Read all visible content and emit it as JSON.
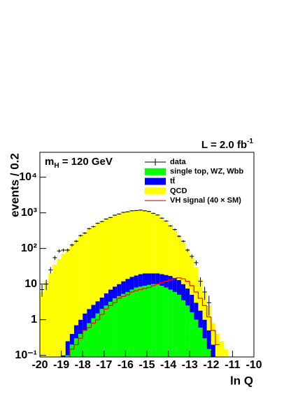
{
  "chart_data": {
    "type": "histogram",
    "lumi": {
      "text": "L = 2.0 fb",
      "sup": "-1"
    },
    "mass_label": {
      "base": "m",
      "sub": "H",
      "rest": " = 120 GeV"
    },
    "y_label": "events / 0.2",
    "x_label": "ln Q",
    "log_y": true,
    "legend": "top-right",
    "xlim": [
      -20,
      -10
    ],
    "ylim": [
      0.09,
      50000
    ],
    "xticks": [
      -20,
      -19,
      -18,
      -17,
      -16,
      -15,
      -14,
      -13,
      -12,
      -11,
      -10
    ],
    "yticks": [
      {
        "value": 0.1,
        "label": "10⁻¹"
      },
      1,
      10,
      {
        "value": 100,
        "label": "10²"
      },
      {
        "value": 1000,
        "label": "10³"
      },
      {
        "value": 10000,
        "label": "10⁴"
      }
    ],
    "bins": [
      -20,
      -19.8,
      -19.6,
      -19.4,
      -19.2,
      -19,
      -18.8,
      -18.6,
      -18.4,
      -18.2,
      -18,
      -17.8,
      -17.6,
      -17.4,
      -17.2,
      -17,
      -16.8,
      -16.6,
      -16.4,
      -16.2,
      -16,
      -15.8,
      -15.6,
      -15.4,
      -15.2,
      -15,
      -14.8,
      -14.6,
      -14.4,
      -14.2,
      -14,
      -13.8,
      -13.6,
      -13.4,
      -13.2,
      -13,
      -12.8,
      -12.6,
      -12.4,
      -12.2,
      -12,
      -11.8,
      -11.6,
      -11.4,
      -11.2,
      -11,
      -10.8,
      -10.6,
      -10.4,
      -10.2,
      -10
    ],
    "series": [
      {
        "name": "single top, WZ, Wbb",
        "color": "#00ff00",
        "values": [
          0,
          0,
          0,
          0,
          0,
          0,
          0.1,
          0.2,
          0.3,
          0.4,
          0.5,
          0.8,
          1.1,
          1.5,
          2,
          2.5,
          3.2,
          4,
          4.6,
          5.3,
          6,
          7,
          8,
          8.5,
          9,
          9.5,
          10,
          9.8,
          9,
          8,
          7,
          6,
          5,
          3.5,
          2.5,
          1.6,
          1,
          0.6,
          0.3,
          0.15,
          0,
          0,
          0,
          0,
          0,
          0,
          0,
          0,
          0,
          0
        ]
      },
      {
        "name": "tt̄",
        "color": "#0000ff",
        "values": [
          0,
          0,
          0,
          0,
          0,
          0.1,
          0.15,
          0.2,
          0.4,
          0.6,
          1,
          1.2,
          1.5,
          1.8,
          2.2,
          3,
          3.8,
          4.5,
          5.4,
          6.7,
          8,
          9,
          9.5,
          10.5,
          11,
          10.5,
          10,
          10.2,
          10,
          10,
          10,
          9,
          8,
          6.5,
          5,
          3.4,
          2,
          1.2,
          0.7,
          0.35,
          0.2,
          0,
          0,
          0,
          0,
          0,
          0,
          0,
          0,
          0
        ]
      },
      {
        "name": "QCD",
        "color": "#ffff00",
        "values": [
          6,
          12,
          20,
          35,
          50,
          70,
          95,
          130,
          169,
          219,
          278,
          348,
          417,
          497,
          576,
          655,
          743,
          841,
          930,
          1008,
          1066,
          1114,
          1152,
          1161,
          1130,
          1060,
          960,
          840,
          701,
          562,
          423,
          315,
          217,
          140,
          88,
          50,
          27,
          12,
          5,
          2,
          0.6,
          0.4,
          0.25,
          0.15,
          0,
          0,
          0,
          0,
          0,
          0
        ]
      }
    ],
    "signal": {
      "name": "VH signal (40 × SM)",
      "color": "#ff0000",
      "values": [
        null,
        null,
        null,
        null,
        null,
        null,
        null,
        0.15,
        0.2,
        0.3,
        0.5,
        0.6,
        0.8,
        1,
        1.4,
        2,
        2.5,
        3,
        4,
        4.5,
        5,
        6,
        6.5,
        7,
        7.5,
        8,
        9,
        10,
        11,
        12,
        13,
        14,
        15,
        14,
        12,
        9,
        6,
        4,
        2.5,
        1.2,
        0.5,
        0.2,
        null,
        null,
        null,
        null,
        null,
        null,
        null,
        null
      ]
    },
    "data": {
      "name": "data",
      "color": "#000000",
      "values": [
        7,
        10,
        25,
        55,
        85,
        90,
        90,
        125,
        160,
        230,
        270,
        360,
        410,
        510,
        570,
        670,
        740,
        860,
        930,
        1030,
        1070,
        1140,
        1160,
        1190,
        1140,
        1090,
        970,
        870,
        710,
        590,
        430,
        340,
        220,
        160,
        90,
        60,
        40,
        12,
        6,
        3,
        null,
        null,
        null,
        null,
        null,
        null,
        null,
        null,
        null,
        null
      ],
      "errors": [
        2.6,
        3.2,
        5,
        7.4,
        9.2,
        9.5,
        9.5,
        11.2,
        12.6,
        15.2,
        16.4,
        19,
        20.2,
        22.6,
        23.9,
        25.9,
        27.2,
        29.3,
        30.5,
        32.1,
        32.7,
        33.8,
        34.1,
        34.5,
        33.8,
        33,
        31.1,
        29.5,
        26.6,
        24.3,
        20.7,
        18.4,
        14.8,
        12.6,
        9.5,
        7.7,
        6.3,
        3.5,
        2.4,
        1.7,
        null,
        null,
        null,
        null,
        null,
        null,
        null,
        null,
        null,
        null
      ]
    }
  }
}
